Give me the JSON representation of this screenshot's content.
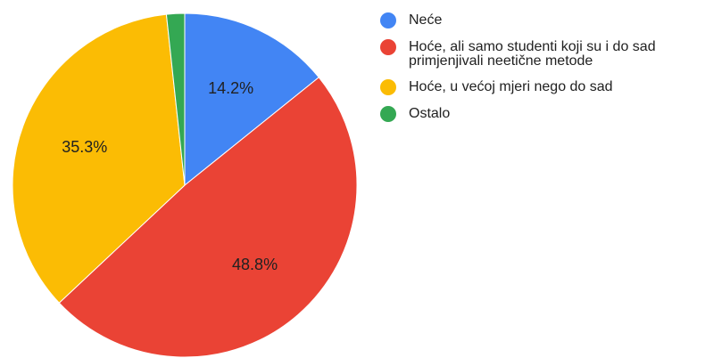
{
  "chart_data": {
    "type": "pie",
    "title": "",
    "categories": [
      "Neće",
      "Hoće, ali samo studenti koji su i do sad primjenjivali neetične metode",
      "Hoće, u većoj mjeri nego do sad",
      "Ostalo"
    ],
    "values": [
      14.2,
      48.8,
      35.3,
      1.7
    ],
    "data_labels": [
      "14.2%",
      "48.8%",
      "35.3%",
      ""
    ],
    "colors": [
      "#4285f4",
      "#ea4335",
      "#fbbc04",
      "#34a853"
    ],
    "legend_position": "right",
    "start_angle": "12 o'clock, clockwise"
  }
}
